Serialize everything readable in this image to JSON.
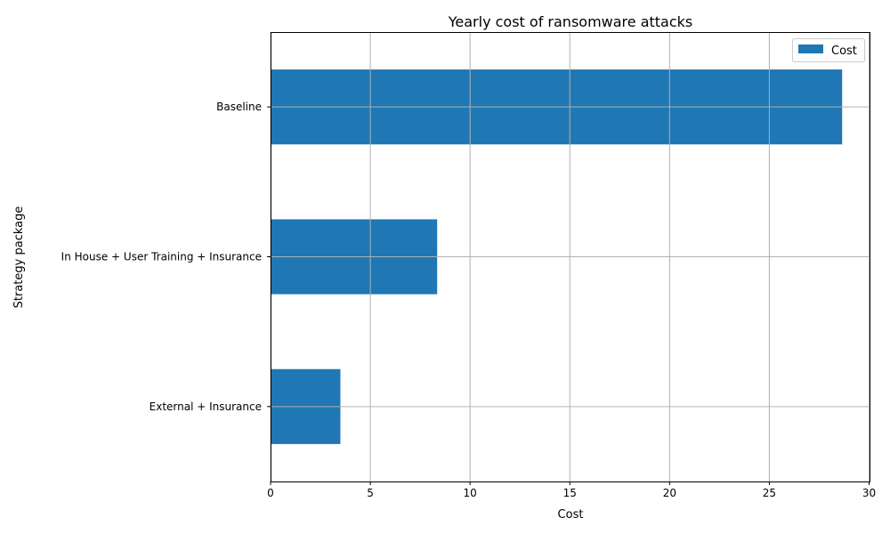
{
  "chart_data": {
    "type": "bar",
    "orientation": "horizontal",
    "title": "Yearly cost of ransomware attacks",
    "xlabel": "Cost",
    "ylabel": "Strategy package",
    "categories": [
      "External + Insurance",
      "In House + User Training + Insurance",
      "Baseline"
    ],
    "series": [
      {
        "name": "Cost",
        "values": [
          3.5,
          8.35,
          28.65
        ],
        "color": "#1f77b4"
      }
    ],
    "xlim": [
      0,
      30
    ],
    "xticks": [
      0,
      5,
      10,
      15,
      20,
      25,
      30
    ],
    "grid": true,
    "legend_position": "top-right"
  }
}
